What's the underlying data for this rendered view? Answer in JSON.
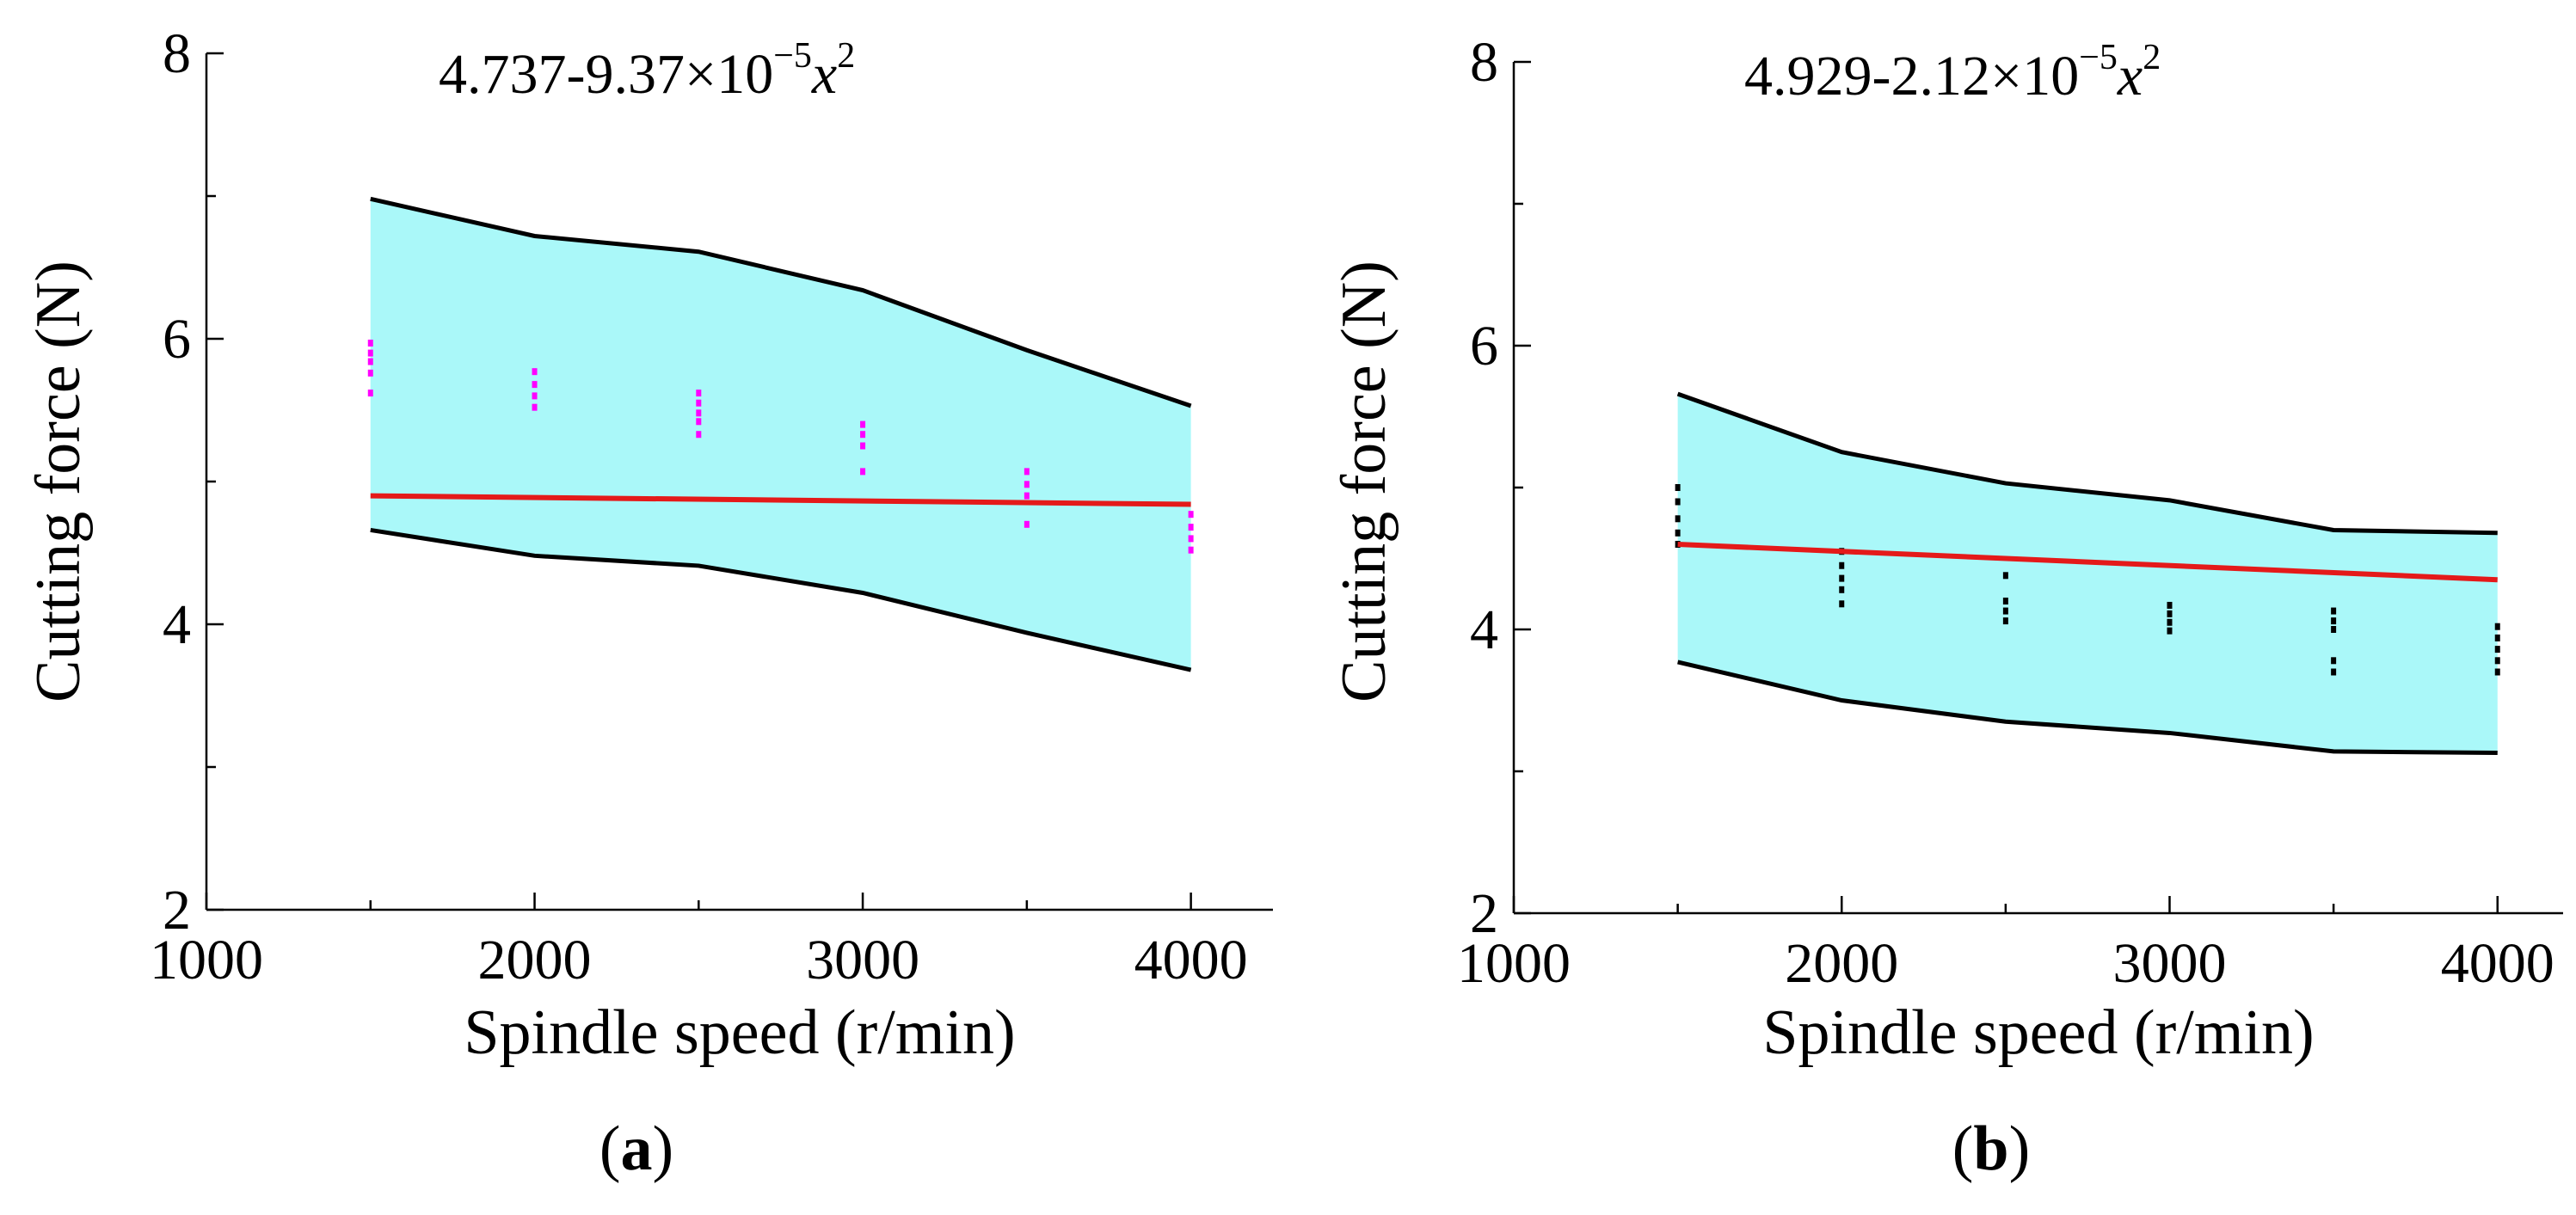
{
  "chart_data": [
    {
      "type": "area",
      "panel_label": "a",
      "formula": {
        "base": "4.737-9.37",
        "times": "×10",
        "exp": "−5",
        "var": "x",
        "var_exp": "2"
      },
      "xlabel": "Spindle speed (r/min)",
      "ylabel": "Cutting force (N)",
      "xlim": [
        1000,
        4250
      ],
      "ylim": [
        2,
        8
      ],
      "xticks": [
        1000,
        2000,
        3000,
        4000
      ],
      "yticks": [
        2,
        4,
        6,
        8
      ],
      "colors": {
        "band": "#aaf8f9",
        "fit": "#e41a1a",
        "points": "#ff00ff",
        "bounds": "#000000"
      },
      "x": [
        1500,
        2000,
        2500,
        3000,
        3500,
        4000
      ],
      "upper_bound": [
        6.98,
        6.72,
        6.61,
        6.34,
        5.92,
        5.53
      ],
      "lower_bound": [
        4.66,
        4.48,
        4.41,
        4.22,
        3.94,
        3.68
      ],
      "fit_line": {
        "x": [
          1500,
          4000
        ],
        "y": [
          4.9,
          4.84
        ]
      },
      "points": [
        {
          "x": 1500,
          "y": [
            5.62,
            5.76,
            5.84,
            5.9,
            5.97
          ]
        },
        {
          "x": 2000,
          "y": [
            5.52,
            5.6,
            5.68,
            5.77
          ]
        },
        {
          "x": 2500,
          "y": [
            5.33,
            5.42,
            5.48,
            5.55,
            5.62
          ]
        },
        {
          "x": 3000,
          "y": [
            5.07,
            5.25,
            5.33,
            5.4
          ]
        },
        {
          "x": 3500,
          "y": [
            4.7,
            4.9,
            4.98,
            5.07
          ]
        },
        {
          "x": 4000,
          "y": [
            4.52,
            4.6,
            4.68,
            4.77
          ]
        }
      ]
    },
    {
      "type": "area",
      "panel_label": "b",
      "formula": {
        "base": "4.929-2.12",
        "times": "×10",
        "exp": "−5",
        "var": "x",
        "var_exp": "2"
      },
      "xlabel": "Spindle speed (r/min)",
      "ylabel": "Cutting force (N)",
      "xlim": [
        1000,
        4200
      ],
      "ylim": [
        2,
        8
      ],
      "xticks": [
        1000,
        2000,
        3000,
        4000
      ],
      "yticks": [
        2,
        4,
        6,
        8
      ],
      "colors": {
        "band": "#aaf8f9",
        "fit": "#e41a1a",
        "points": "#000000",
        "bounds": "#000000"
      },
      "x": [
        1500,
        2000,
        2500,
        3000,
        3500,
        4000
      ],
      "upper_bound": [
        5.66,
        5.25,
        5.03,
        4.91,
        4.7,
        4.68
      ],
      "lower_bound": [
        3.77,
        3.5,
        3.35,
        3.27,
        3.14,
        3.13
      ],
      "fit_line": {
        "x": [
          1500,
          4000
        ],
        "y": [
          4.6,
          4.35
        ]
      },
      "points": [
        {
          "x": 1500,
          "y": [
            4.6,
            4.68,
            4.78,
            4.9,
            5.0
          ]
        },
        {
          "x": 2000,
          "y": [
            4.18,
            4.28,
            4.36,
            4.45,
            4.55
          ]
        },
        {
          "x": 2500,
          "y": [
            4.06,
            4.13,
            4.2,
            4.38
          ]
        },
        {
          "x": 3000,
          "y": [
            3.99,
            4.05,
            4.11,
            4.17
          ]
        },
        {
          "x": 3500,
          "y": [
            3.7,
            3.78,
            4.0,
            4.06,
            4.13
          ]
        },
        {
          "x": 4000,
          "y": [
            3.7,
            3.78,
            3.86,
            3.94,
            4.02
          ]
        }
      ]
    }
  ]
}
